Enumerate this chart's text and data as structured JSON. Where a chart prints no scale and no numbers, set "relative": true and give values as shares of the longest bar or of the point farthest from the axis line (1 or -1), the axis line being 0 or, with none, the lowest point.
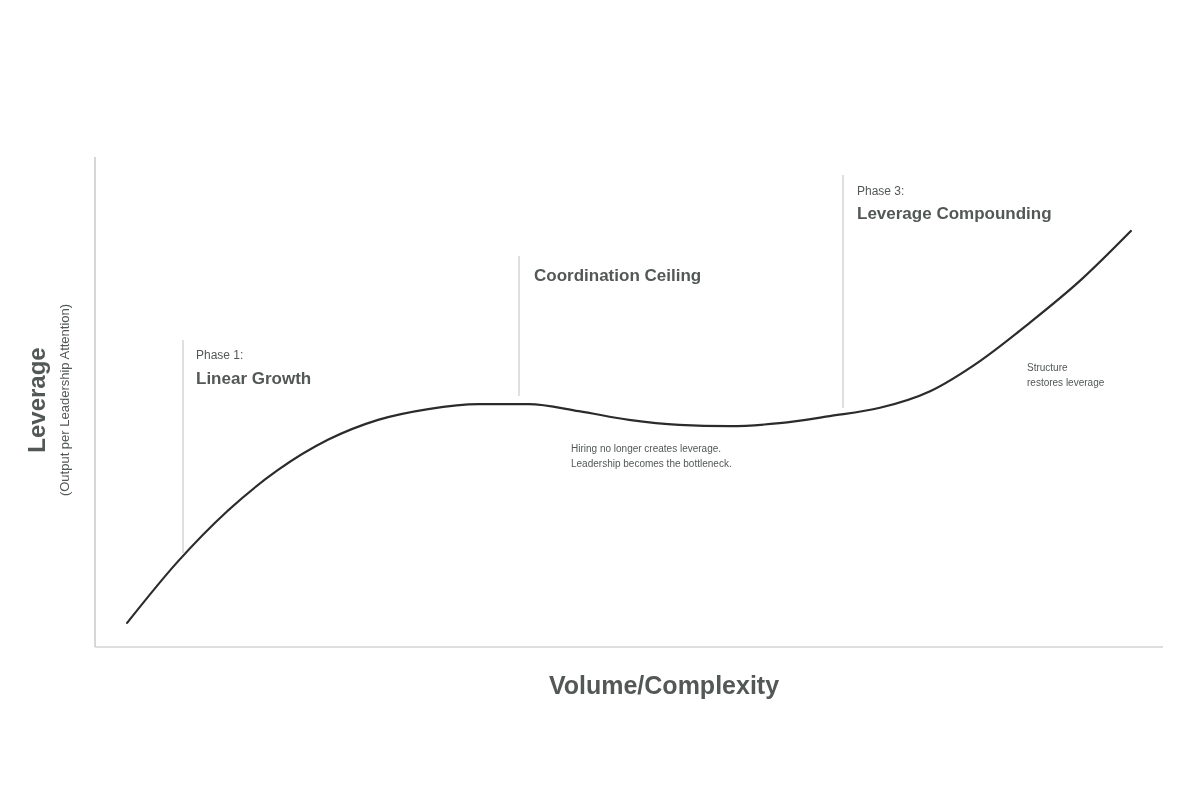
{
  "chart_data": {
    "type": "line",
    "relative": true,
    "xlabel": "Volume/Complexity",
    "ylabel": "Leverage\n(Output per Leadership Attention)",
    "categories": [
      null,
      null,
      null,
      null,
      null,
      null,
      null,
      null,
      null,
      null,
      null,
      null,
      null,
      null,
      null,
      null,
      null,
      null,
      null,
      null,
      null
    ],
    "series": [
      {
        "color": "#2b2b2b",
        "values": [
          0.058,
          0.204,
          0.327,
          0.425,
          0.498,
          0.546,
          0.572,
          0.584,
          0.584,
          0.567,
          0.546,
          0.534,
          0.531,
          0.538,
          0.555,
          0.575,
          0.615,
          0.688,
          0.781,
          0.882,
          1
        ]
      }
    ],
    "annotations": [
      "Phase 1:",
      "Linear Growth",
      "Coordination Ceiling",
      "Phase 3:",
      "Leverage Compounding",
      "Hiring no longer creates leverage.\nLeadership becomes the bottleneck.",
      "Structure\nrestores leverage"
    ],
    "marker": "none",
    "line_style": "solid"
  }
}
